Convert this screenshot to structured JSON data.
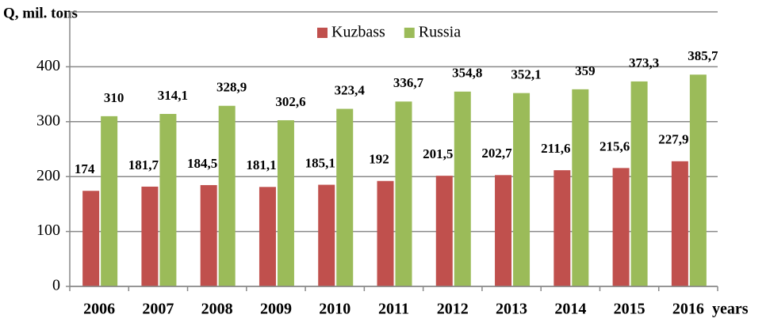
{
  "chart_data": {
    "type": "bar",
    "y_label": "Q, mil. tons",
    "x_label": "years",
    "categories": [
      "2006",
      "2007",
      "2008",
      "2009",
      "2010",
      "2011",
      "2012",
      "2013",
      "2014",
      "2015",
      "2016"
    ],
    "series": [
      {
        "name": "Kuzbass",
        "color": "#c0504d",
        "values": [
          174,
          181.7,
          184.5,
          181.1,
          185.1,
          192,
          201.5,
          202.7,
          211.6,
          215.6,
          227.9
        ],
        "value_labels": [
          "174",
          "181,7",
          "184,5",
          "181,1",
          "185,1",
          "192",
          "201,5",
          "202,7",
          "211,6",
          "215,6",
          "227,9"
        ]
      },
      {
        "name": "Russia",
        "color": "#9bbb59",
        "values": [
          310,
          314.1,
          328.9,
          302.6,
          323.4,
          336.7,
          354.8,
          352.1,
          359,
          373.3,
          385.7
        ],
        "value_labels": [
          "310",
          "314,1",
          "328,9",
          "302,6",
          "323,4",
          "336,7",
          "354,8",
          "352,1",
          "359",
          "373,3",
          "385,7"
        ]
      }
    ],
    "ylim": [
      0,
      500
    ],
    "yticks": [
      0,
      100,
      200,
      300,
      400
    ],
    "grid": true,
    "legend": "top"
  }
}
